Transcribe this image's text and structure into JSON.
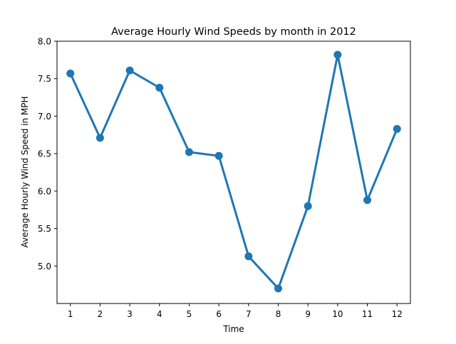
{
  "chart_data": {
    "type": "line",
    "title": "Average Hourly Wind Speeds by month in 2012",
    "xlabel": "Time",
    "ylabel": "Average Hourly Wind Speed in MPH",
    "x": [
      1,
      2,
      3,
      4,
      5,
      6,
      7,
      8,
      9,
      10,
      11,
      12
    ],
    "xtick_labels": [
      "1",
      "2",
      "3",
      "4",
      "5",
      "6",
      "7",
      "8",
      "9",
      "10",
      "11",
      "12"
    ],
    "values": [
      7.57,
      6.71,
      7.61,
      7.38,
      6.52,
      6.47,
      5.13,
      4.7,
      5.8,
      7.82,
      5.88,
      6.83
    ],
    "ylim": [
      4.5,
      8.0
    ],
    "yticks": [
      5.0,
      5.5,
      6.0,
      6.5,
      7.0,
      7.5,
      8.0
    ],
    "ytick_labels": [
      "5.0",
      "5.5",
      "6.0",
      "6.5",
      "7.0",
      "7.5",
      "8.0"
    ],
    "grid": false,
    "legend": "none",
    "line_color": "#1f77b4"
  }
}
